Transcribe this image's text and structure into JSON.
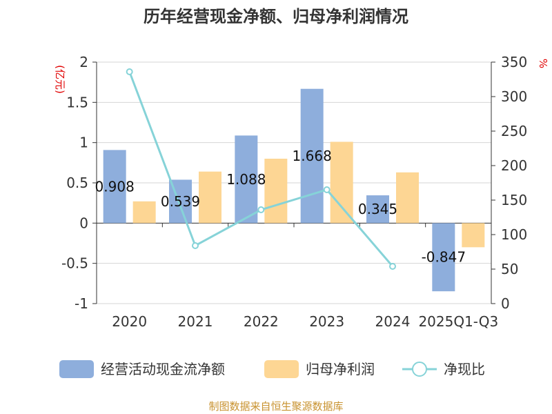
{
  "chart_data": {
    "type": "bar",
    "title": "历年经营现金净额、归母净利润情况",
    "categories": [
      "2020",
      "2021",
      "2022",
      "2023",
      "2024",
      "2025Q1-Q3"
    ],
    "series": [
      {
        "name": "经营活动现金流净额",
        "type": "bar",
        "axis": "left",
        "color": "#8eaedc",
        "values": [
          0.908,
          0.539,
          1.088,
          1.668,
          0.345,
          -0.847
        ]
      },
      {
        "name": "归母净利润",
        "type": "bar",
        "axis": "left",
        "color": "#fdd694",
        "values": [
          0.27,
          0.64,
          0.8,
          1.01,
          0.63,
          -0.3
        ]
      },
      {
        "name": "净现比",
        "type": "line",
        "axis": "right",
        "color": "#86d3d8",
        "values": [
          336,
          84,
          136,
          165,
          54,
          null
        ]
      }
    ],
    "data_labels": [
      "0.908",
      "0.539",
      "1.088",
      "1.668",
      "0.345",
      "-0.847"
    ],
    "left_axis": {
      "unit": "(亿元)",
      "ylim": [
        -1,
        2
      ],
      "ticks": [
        -1,
        -0.5,
        0,
        0.5,
        1,
        1.5,
        2
      ],
      "tick_labels": [
        "-1",
        "-0.5",
        "0",
        "0.5",
        "1",
        "1.5",
        "2"
      ]
    },
    "right_axis": {
      "unit": "%",
      "ylim": [
        0,
        350
      ],
      "ticks": [
        0,
        50,
        100,
        150,
        200,
        250,
        300,
        350
      ],
      "tick_labels": [
        "0",
        "50",
        "100",
        "150",
        "200",
        "250",
        "300",
        "350"
      ]
    },
    "grid": true,
    "legend_position": "bottom"
  },
  "source": "制图数据来自恒生聚源数据库"
}
